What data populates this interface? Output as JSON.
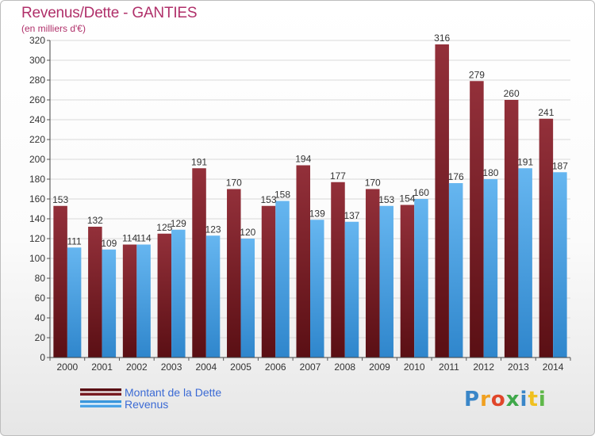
{
  "header": {
    "title": "Revenus/Dette - GANTIES",
    "subtitle": "(en milliers d'€)"
  },
  "legend": {
    "dette_label": "Montant de la Dette",
    "revenus_label": "Revenus"
  },
  "logo": {
    "text": "Proxiti"
  },
  "colors": {
    "dette": "#7a1c22",
    "dette_light": "#9a3136",
    "revenus": "#4aa3e6",
    "revenus_light": "#6cbaf0",
    "title": "#b0306a",
    "legend_text": "#3b6ad4"
  },
  "chart_data": {
    "type": "bar",
    "categories": [
      "2000",
      "2001",
      "2002",
      "2003",
      "2004",
      "2005",
      "2006",
      "2007",
      "2008",
      "2009",
      "2010",
      "2011",
      "2012",
      "2013",
      "2014"
    ],
    "series": [
      {
        "name": "Montant de la Dette",
        "values": [
          153,
          132,
          114,
          125,
          191,
          170,
          153,
          194,
          177,
          170,
          154,
          316,
          279,
          260,
          241
        ]
      },
      {
        "name": "Revenus",
        "values": [
          111,
          109,
          114,
          129,
          123,
          120,
          158,
          139,
          137,
          153,
          160,
          176,
          180,
          191,
          187
        ]
      }
    ],
    "ylim": [
      0,
      320
    ],
    "yticks": [
      0,
      20,
      40,
      60,
      80,
      100,
      120,
      140,
      160,
      180,
      200,
      220,
      240,
      260,
      280,
      300,
      320
    ],
    "grid": true,
    "legend_position": "bottom-left"
  }
}
